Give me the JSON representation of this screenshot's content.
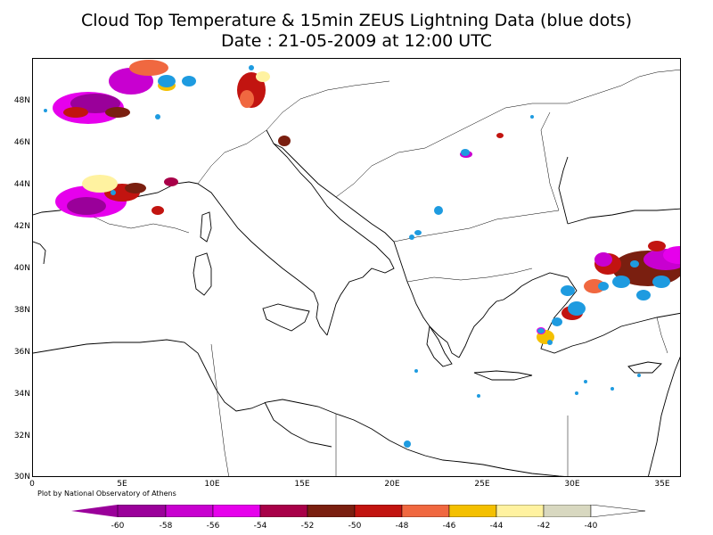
{
  "title": {
    "line1": "Cloud Top Temperature & 15min ZEUS Lightning Data (blue dots)",
    "line2": "Date : 21-05-2009 at 12:00 UTC"
  },
  "map": {
    "lon_range": [
      0,
      36
    ],
    "lat_range": [
      30,
      50
    ],
    "lat_labels": [
      "48N",
      "46N",
      "44N",
      "42N",
      "40N",
      "38N",
      "36N",
      "34N",
      "32N",
      "30N"
    ],
    "lon_labels": [
      "0",
      "5E",
      "10E",
      "15E",
      "20E",
      "25E",
      "30E",
      "35E"
    ],
    "lightning_color": "#1e9be0",
    "coast_color": "#000000"
  },
  "credit": "Plot by National Observatory of Athens",
  "colorbar": {
    "labels": [
      "-60",
      "-58",
      "-56",
      "-54",
      "-52",
      "-50",
      "-48",
      "-46",
      "-44",
      "-42",
      "-40"
    ],
    "colors": [
      "#9a009a",
      "#c800d0",
      "#e600ec",
      "#a80048",
      "#7a1f10",
      "#c21410",
      "#f06840",
      "#f4c000",
      "#fff2a0",
      "#d8d8c0"
    ]
  }
}
